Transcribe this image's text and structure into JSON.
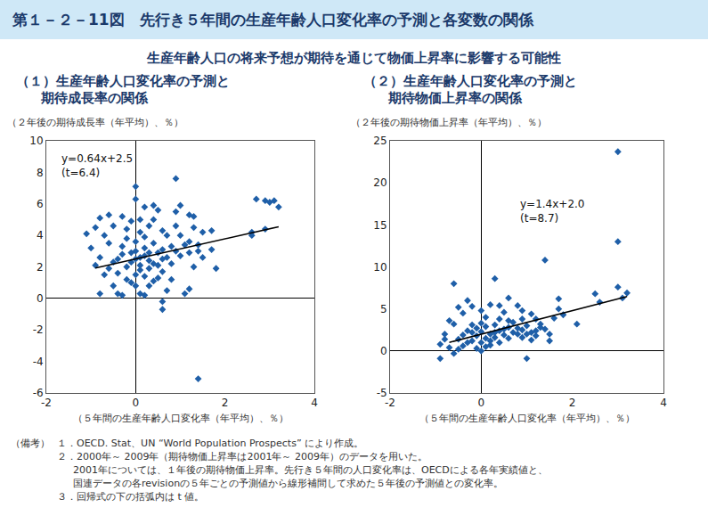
{
  "header": {
    "title": "第１－２－11図　先行き５年間の生産年齢人口変化率の予測と各変数の関係",
    "subtitle": "生産年齢人口の将来予想が期待を通じて物価上昇率に影響する可能性"
  },
  "chart_data": [
    {
      "type": "scatter",
      "title": [
        "（１）生産年齢人口変化率の予測と",
        "期待成長率の関係"
      ],
      "ylabel": "（２年後の期待成長率（年平均）、％）",
      "xlabel": "（５年間の生産年齢人口変化率（年平均）、％）",
      "annotation": [
        "y=0.64x+2.5",
        "(t=6.4)"
      ],
      "xlim": [
        -2,
        4
      ],
      "xticks": [
        -2,
        0,
        2,
        4
      ],
      "ylim": [
        -6,
        10
      ],
      "yticks": [
        -6,
        -4,
        -2,
        0,
        2,
        4,
        6,
        8,
        10
      ],
      "grid": false,
      "series": [
        {
          "type": "scatter",
          "marker": "diamond",
          "color": "#1f5fa8",
          "x": [
            0,
            0.9,
            1.4,
            0.6,
            0.6,
            2.7,
            2.9,
            3.0,
            3.2,
            3.1,
            2.6,
            2.6,
            2.9,
            1.5,
            1.7,
            1.7,
            1.8,
            1.4,
            1.2,
            1.0,
            1.2,
            1.3,
            1.3,
            0.9,
            -1.1,
            -0.9,
            -0.8,
            -0.6,
            -0.3,
            -0.5,
            -0.7,
            -0.6,
            -1.0,
            -0.8,
            -0.9,
            -0.7,
            -0.8,
            -0.5,
            -0.4,
            -0.3,
            -0.2,
            0.1,
            0.2,
            0.0,
            0.3,
            0.4,
            0.5,
            0.7,
            0.8,
            1.1,
            1.2,
            -0.2,
            -0.1,
            0.0,
            0.1,
            0.2,
            0.3,
            0.4,
            0.5,
            0.6,
            0.7,
            0.8,
            0.9,
            1.0,
            1.1,
            1.2,
            -0.3,
            -0.4,
            -0.5,
            -0.6,
            -0.4,
            -0.3,
            -0.2,
            0.0,
            0.1,
            0.2,
            0.3,
            0.4,
            0.5,
            0.6,
            0.7,
            0.2,
            0.4,
            0.9,
            0.0,
            0.1,
            0.2,
            0.3,
            -0.1,
            0.5,
            0.6,
            0.8,
            -0.2,
            0.0,
            0.1,
            -0.1,
            0.2,
            0.3,
            0.4,
            0.1,
            1.5,
            1.4,
            1.3,
            1.0,
            0.6,
            0.0,
            -0.1
          ],
          "y": [
            7.1,
            7.6,
            -5.1,
            -0.7,
            -0.2,
            6.3,
            6.2,
            6.1,
            5.8,
            6.2,
            4.2,
            4.0,
            4.4,
            4.2,
            4.3,
            3.1,
            1.9,
            3.4,
            3.6,
            5.9,
            5.3,
            5.2,
            4.5,
            4.6,
            4.1,
            4.5,
            5.1,
            5.3,
            5.2,
            4.6,
            4.0,
            3.5,
            3.2,
            2.6,
            2.1,
            1.5,
            0.3,
            0.8,
            0.3,
            0.2,
            1.2,
            0.3,
            0.2,
            0.8,
            0.8,
            1.1,
            1.3,
            0.5,
            1.2,
            0.3,
            0.6,
            2.0,
            2.3,
            2.5,
            2.1,
            2.7,
            2.4,
            2.2,
            2.9,
            3.1,
            2.6,
            3.3,
            3.0,
            2.7,
            3.4,
            2.9,
            2.8,
            2.5,
            2.3,
            1.9,
            1.6,
            3.3,
            3.8,
            3.6,
            4.2,
            3.9,
            4.6,
            5.0,
            5.6,
            4.3,
            4.0,
            5.8,
            5.9,
            5.5,
            1.5,
            1.8,
            1.4,
            1.9,
            1.0,
            2.1,
            1.7,
            2.2,
            4.4,
            6.3,
            5.0,
            2.9,
            3.2,
            2.9,
            3.5,
            2.6,
            2.6,
            3.0,
            2.0,
            4.0,
            2.5,
            3.0,
            4.9
          ]
        },
        {
          "type": "line",
          "line_style": "solid",
          "color": "#000000",
          "x": [
            -0.9,
            3.2
          ],
          "y": [
            1.924,
            4.548
          ]
        }
      ]
    },
    {
      "type": "scatter",
      "title": [
        "（２）生産年齢人口変化率の予測と",
        "期待物価上昇率の関係"
      ],
      "ylabel": "（２年後の期待物価上昇率（年平均）、％）",
      "xlabel": "（５年間の生産年齢人口変化率（年平均）、％）",
      "annotation": [
        "y=1.4x+2.0",
        "(t=8.7)"
      ],
      "xlim": [
        -2,
        4
      ],
      "xticks": [
        -2,
        0,
        2,
        4
      ],
      "ylim": [
        -5,
        25
      ],
      "yticks": [
        -5,
        0,
        5,
        10,
        15,
        20,
        25
      ],
      "grid": false,
      "series": [
        {
          "type": "scatter",
          "marker": "diamond",
          "color": "#1f5fa8",
          "x": [
            3.0,
            3.0,
            1.4,
            0.3,
            -0.6,
            2.5,
            3.0,
            3.2,
            3.1,
            2.6,
            1.7,
            1.7,
            1.8,
            1.6,
            0.6,
            1.0,
            -0.9,
            -0.9,
            -0.8,
            -0.8,
            -0.7,
            -0.6,
            -0.5,
            -0.4,
            -0.3,
            -0.2,
            0.0,
            0.1,
            0.2,
            0.4,
            0.5,
            0.8,
            0.9,
            1.1,
            1.2,
            1.3,
            1.4,
            1.5,
            1.2,
            1.3,
            1.1,
            1.0,
            0.9,
            0.8,
            0.7,
            0.6,
            0.5,
            0.4,
            0.3,
            0.2,
            0.1,
            0.0,
            -0.1,
            -0.2,
            -0.3,
            -0.4,
            -0.5,
            -0.6,
            -0.7,
            -0.3,
            -0.2,
            -0.1,
            0.0,
            0.1,
            0.2,
            0.3,
            0.4,
            0.5,
            0.6,
            0.7,
            0.8,
            0.9,
            1.0,
            1.1,
            0.0,
            -0.1,
            0.2,
            -0.4,
            -0.5,
            0.1,
            0.3,
            0.6,
            0.4,
            0.0,
            -0.2,
            1.2,
            0.9,
            2.1,
            1.5
          ],
          "y": [
            23.7,
            13.0,
            10.8,
            8.6,
            8.0,
            6.8,
            7.6,
            6.9,
            6.3,
            5.8,
            6.2,
            5.0,
            4.3,
            3.9,
            6.3,
            -0.9,
            -0.9,
            0.8,
            2.0,
            1.4,
            3.6,
            3.2,
            5.2,
            4.5,
            6.0,
            5.3,
            4.8,
            4.0,
            5.5,
            5.4,
            4.6,
            5.4,
            4.8,
            4.4,
            3.8,
            3.2,
            2.6,
            2.0,
            1.8,
            2.8,
            2.2,
            3.0,
            2.5,
            2.0,
            3.4,
            2.8,
            1.9,
            2.4,
            3.1,
            2.0,
            1.5,
            2.3,
            1.8,
            1.2,
            1.0,
            0.6,
            0.2,
            -0.3,
            0.4,
            2.4,
            3.1,
            2.7,
            1.0,
            0.5,
            1.2,
            1.6,
            1.0,
            2.6,
            1.5,
            2.2,
            2.7,
            1.6,
            2.0,
            1.3,
            0.0,
            0.3,
            0.7,
            1.9,
            1.4,
            2.9,
            2.2,
            3.6,
            3.8,
            3.3,
            2.2,
            2.4,
            3.8,
            3.2,
            1.2
          ]
        },
        {
          "type": "line",
          "line_style": "solid",
          "color": "#000000",
          "x": [
            -0.7,
            3.2
          ],
          "y": [
            1.02,
            6.48
          ]
        }
      ]
    }
  ],
  "notes_label": "（備考）",
  "notes": [
    [
      "１．OECD. Stat、UN “World Population Prospects” により作成。"
    ],
    [
      "２．2000年～ 2009年（期待物価上昇率は2001年～ 2009年）のデータを用いた。",
      "2001年については、１年後の期待物価上昇率。先行き５年間の人口変化率は、OECDによる各年実績値と、",
      "国連データの各revisionの５年ごとの予測値から線形補間して求めた５年後の予測値との変化率。"
    ],
    [
      "３．回帰式の下の括弧内は t 値。"
    ]
  ]
}
